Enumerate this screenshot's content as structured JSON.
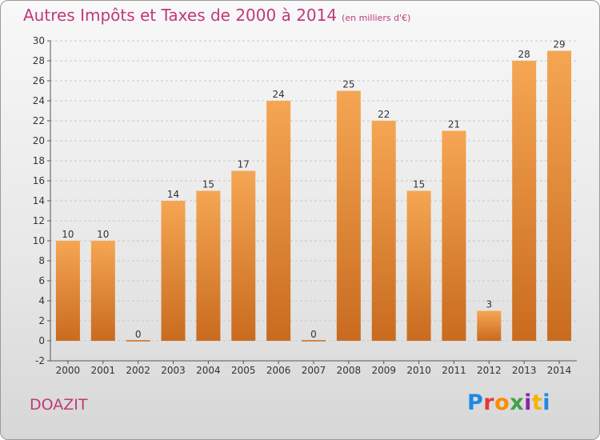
{
  "title": "Autres Impôts et Taxes de 2000 à 2014",
  "title_unit": "(en milliers d'€)",
  "location": "DOAZIT",
  "logo": {
    "text": "Proxiti",
    "colors": [
      "#1e88e5",
      "#e53935",
      "#fb8c00",
      "#43a047",
      "#8e24aa",
      "#f4b400",
      "#1e88e5"
    ]
  },
  "colors": {
    "title": "#c0397a",
    "bar_light": "#f5a653",
    "bar_dark": "#c96b1f"
  },
  "chart_data": {
    "type": "bar",
    "title": "Autres Impôts et Taxes de 2000 à 2014",
    "categories": [
      "2000",
      "2001",
      "2002",
      "2003",
      "2004",
      "2005",
      "2006",
      "2007",
      "2008",
      "2009",
      "2010",
      "2011",
      "2012",
      "2013",
      "2014"
    ],
    "values": [
      10,
      10,
      0,
      14,
      15,
      17,
      24,
      0,
      25,
      22,
      15,
      21,
      3,
      28,
      29
    ],
    "ylim": [
      -2,
      30
    ],
    "yticks": [
      -2,
      0,
      2,
      4,
      6,
      8,
      10,
      12,
      14,
      16,
      18,
      20,
      22,
      24,
      26,
      28,
      30
    ],
    "grid": true
  }
}
